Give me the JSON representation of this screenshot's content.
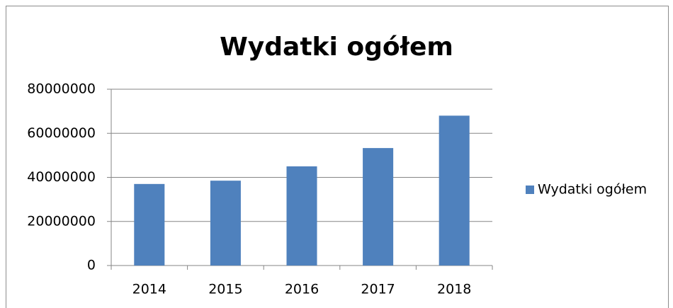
{
  "chart_data": {
    "type": "bar",
    "title": "Wydatki ogółem",
    "categories": [
      "2014",
      "2015",
      "2016",
      "2017",
      "2018"
    ],
    "series": [
      {
        "name": "Wydatki ogółem",
        "color": "#4f81bd",
        "values": [
          37000000,
          38500000,
          45000000,
          53300000,
          68000000
        ]
      }
    ],
    "ylim": [
      0,
      80000000
    ],
    "yticks": [
      0,
      20000000,
      40000000,
      60000000,
      80000000
    ],
    "grid": true,
    "legend": "right"
  }
}
